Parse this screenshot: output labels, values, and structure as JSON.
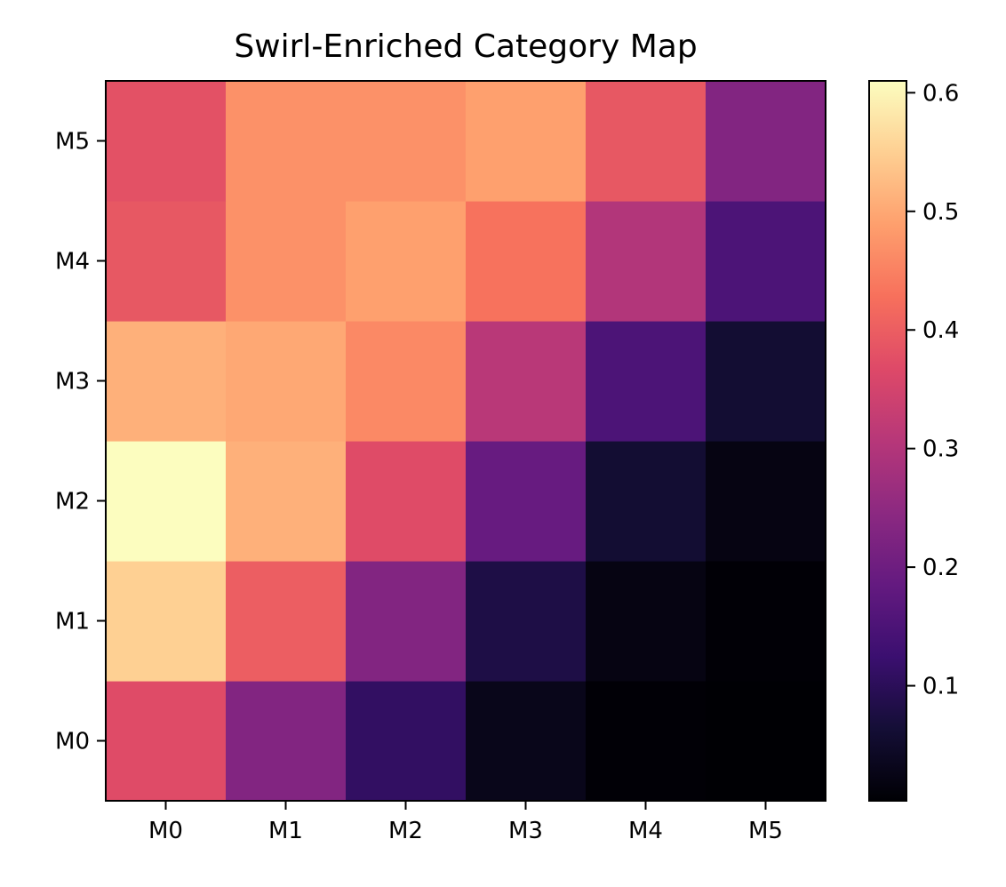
{
  "chart_data": {
    "type": "heatmap",
    "title": "Swirl-Enriched Category Map",
    "xlabel": "",
    "ylabel": "",
    "x_categories": [
      "M0",
      "M1",
      "M2",
      "M3",
      "M4",
      "M5"
    ],
    "y_categories": [
      "M0",
      "M1",
      "M2",
      "M3",
      "M4",
      "M5"
    ],
    "rows_bottom_to_top": [
      [
        0.37,
        0.23,
        0.11,
        0.03,
        0.005,
        0.003
      ],
      [
        0.55,
        0.4,
        0.23,
        0.08,
        0.02,
        0.005
      ],
      [
        0.61,
        0.51,
        0.37,
        0.19,
        0.06,
        0.02
      ],
      [
        0.51,
        0.5,
        0.46,
        0.31,
        0.15,
        0.06
      ],
      [
        0.39,
        0.47,
        0.49,
        0.43,
        0.3,
        0.15
      ],
      [
        0.38,
        0.47,
        0.47,
        0.49,
        0.39,
        0.23
      ]
    ],
    "colormap": "magma",
    "colorbar": {
      "min": 0.003,
      "max": 0.61,
      "ticks": [
        0.1,
        0.2,
        0.3,
        0.4,
        0.5,
        0.6
      ],
      "tick_labels": [
        "0.1",
        "0.2",
        "0.3",
        "0.4",
        "0.5",
        "0.6"
      ]
    }
  }
}
